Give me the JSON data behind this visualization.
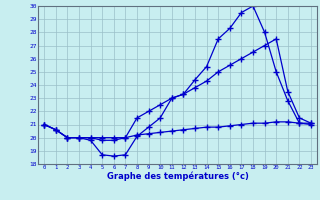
{
  "xlabel": "Graphe des températures (°c)",
  "background_color": "#c8eef0",
  "line_color": "#0000cc",
  "ylim": [
    18,
    30
  ],
  "yticks": [
    18,
    19,
    20,
    21,
    22,
    23,
    24,
    25,
    26,
    27,
    28,
    29,
    30
  ],
  "xlim": [
    -0.5,
    23.5
  ],
  "x_labels": [
    "0",
    "1",
    "2",
    "3",
    "4",
    "5",
    "6",
    "7",
    "8",
    "9",
    "10",
    "11",
    "12",
    "13",
    "14",
    "15",
    "16",
    "17",
    "18",
    "19",
    "20",
    "21",
    "22",
    "23"
  ],
  "line1_y": [
    21.0,
    20.6,
    20.0,
    20.0,
    19.8,
    18.7,
    18.6,
    18.7,
    20.1,
    20.8,
    21.5,
    23.0,
    23.3,
    24.4,
    25.4,
    27.5,
    28.3,
    29.5,
    30.0,
    28.0,
    25.0,
    22.8,
    21.1,
    21.1
  ],
  "line2_y": [
    21.0,
    20.6,
    20.0,
    20.0,
    20.0,
    19.8,
    19.8,
    20.0,
    21.5,
    22.0,
    22.5,
    23.0,
    23.3,
    23.8,
    24.3,
    25.0,
    25.5,
    26.0,
    26.5,
    27.0,
    27.5,
    23.5,
    21.5,
    21.1
  ],
  "line3_y": [
    21.0,
    20.6,
    20.0,
    20.0,
    20.0,
    20.0,
    20.0,
    20.0,
    20.2,
    20.3,
    20.4,
    20.5,
    20.6,
    20.7,
    20.8,
    20.8,
    20.9,
    21.0,
    21.1,
    21.1,
    21.2,
    21.2,
    21.1,
    21.0
  ]
}
